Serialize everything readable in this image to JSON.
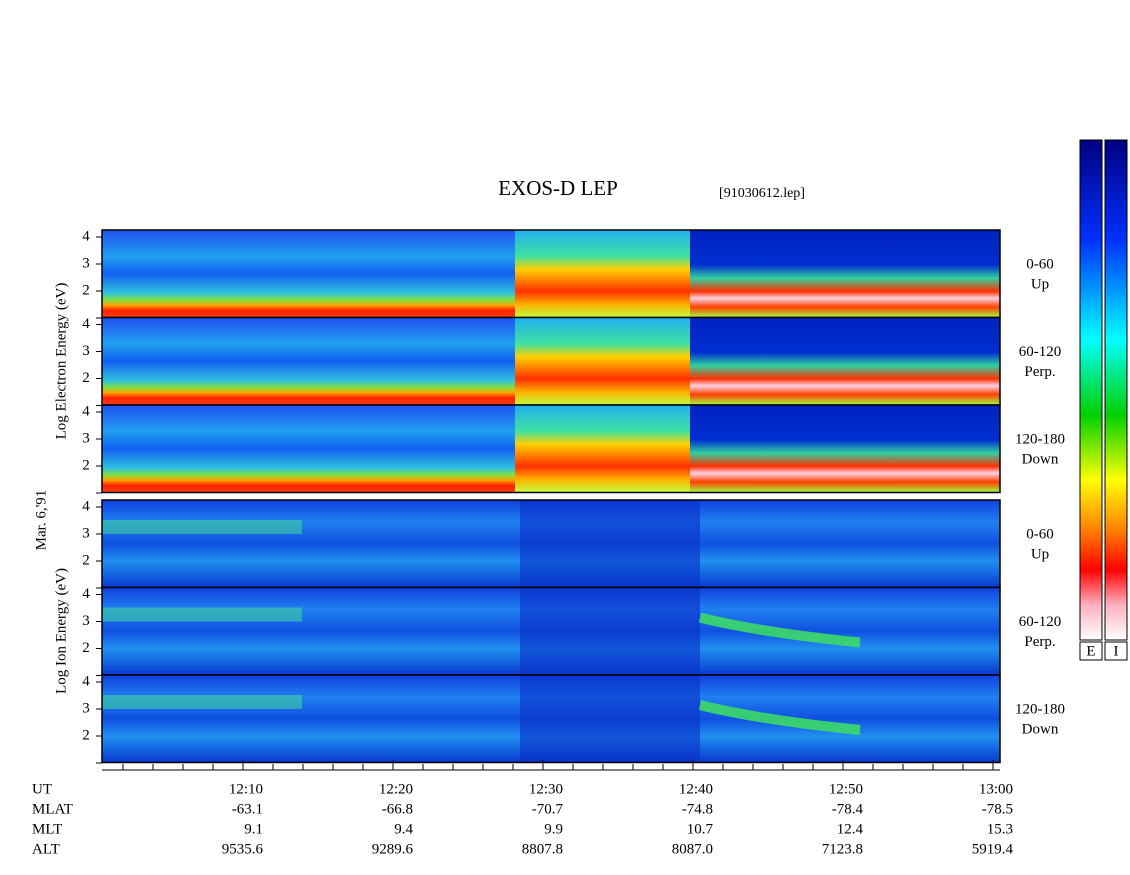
{
  "title": "EXOS-D LEP",
  "file": "[91030612.lep]",
  "date": "Mar. 6,'91",
  "groups": [
    {
      "label": "Log  Electron  Energy (eV)",
      "panels": [
        {
          "name": "0-60",
          "dir": "Up"
        },
        {
          "name": "60-120",
          "dir": "Perp."
        },
        {
          "name": "120-180",
          "dir": "Down"
        }
      ]
    },
    {
      "label": "Log  Ion  Energy (eV)",
      "panels": [
        {
          "name": "0-60",
          "dir": "Up"
        },
        {
          "name": "60-120",
          "dir": "Perp."
        },
        {
          "name": "120-180",
          "dir": "Down"
        }
      ]
    }
  ],
  "yticks": [
    "2",
    "3",
    "4"
  ],
  "colorbars": [
    "E",
    "I"
  ],
  "x_axis": {
    "ticks": [
      "12:10",
      "12:20",
      "12:30",
      "12:40",
      "12:50",
      "13:00"
    ],
    "rows": [
      {
        "name": "UT",
        "values": null
      },
      {
        "name": "MLAT",
        "values": [
          "-63.1",
          "-66.8",
          "-70.7",
          "-74.8",
          "-78.4",
          "-78.5"
        ]
      },
      {
        "name": "MLT",
        "values": [
          "9.1",
          "9.4",
          "9.9",
          "10.7",
          "12.4",
          "15.3"
        ]
      },
      {
        "name": "ALT",
        "values": [
          "9535.6",
          "9289.6",
          "8807.8",
          "8087.0",
          "7123.8",
          "5919.4"
        ]
      }
    ]
  }
}
